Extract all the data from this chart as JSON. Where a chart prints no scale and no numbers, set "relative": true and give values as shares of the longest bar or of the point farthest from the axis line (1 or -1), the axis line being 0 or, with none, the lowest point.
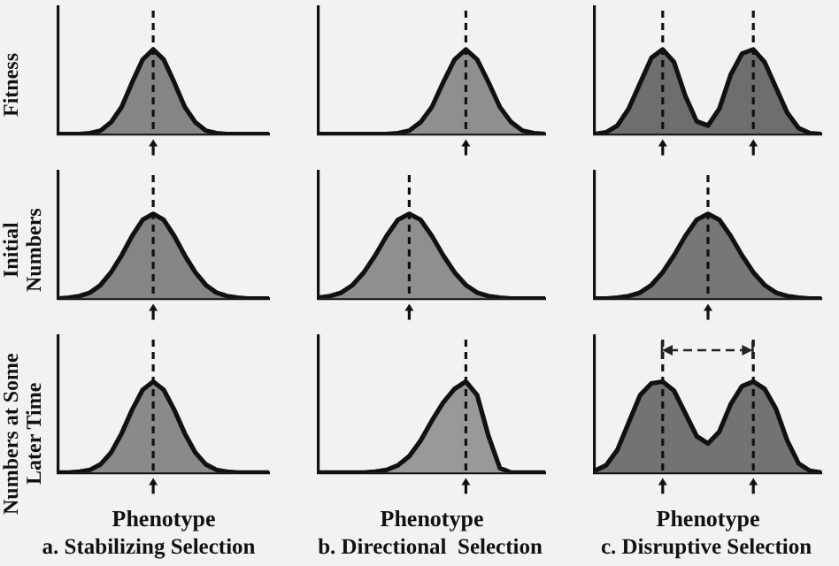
{
  "chart_data": [
    {
      "type": "area",
      "relative": true,
      "ylabel": "Fitness",
      "categories": [
        null,
        null,
        null,
        null,
        null,
        null,
        null,
        null,
        null,
        null,
        null,
        null,
        null,
        null,
        null,
        null,
        null,
        null,
        null,
        null,
        null
      ],
      "color": "#858585",
      "values": [
        0,
        0,
        0,
        0.01,
        0.04,
        0.14,
        0.32,
        0.61,
        0.88,
        1,
        0.88,
        0.61,
        0.32,
        0.14,
        0.04,
        0.01,
        0,
        0,
        0,
        0,
        0
      ]
    },
    {
      "type": "area",
      "relative": true,
      "categories": [
        null,
        null,
        null,
        null,
        null,
        null,
        null,
        null,
        null,
        null,
        null,
        null,
        null,
        null,
        null,
        null,
        null,
        null,
        null,
        null,
        null
      ],
      "color": "#8f8f8f",
      "values": [
        0,
        0,
        0,
        0,
        0,
        0,
        0,
        0.01,
        0.04,
        0.14,
        0.32,
        0.61,
        0.88,
        1,
        0.88,
        0.61,
        0.32,
        0.14,
        0.04,
        0.01,
        0
      ]
    },
    {
      "type": "area",
      "relative": true,
      "categories": [
        null,
        null,
        null,
        null,
        null,
        null,
        null,
        null,
        null,
        null,
        null,
        null,
        null,
        null,
        null,
        null,
        null,
        null,
        null,
        null,
        null
      ],
      "color": "#6e6e6e",
      "values": [
        0,
        0.02,
        0.1,
        0.3,
        0.6,
        0.9,
        1,
        0.85,
        0.45,
        0.15,
        0.1,
        0.3,
        0.7,
        0.95,
        1,
        0.85,
        0.55,
        0.25,
        0.07,
        0.01,
        0
      ]
    },
    {
      "type": "area",
      "relative": true,
      "ylabel": "Initial Numbers",
      "categories": [
        null,
        null,
        null,
        null,
        null,
        null,
        null,
        null,
        null,
        null,
        null,
        null,
        null,
        null,
        null,
        null,
        null,
        null,
        null,
        null,
        null
      ],
      "color": "#858585",
      "values": [
        0,
        0.01,
        0.03,
        0.07,
        0.16,
        0.31,
        0.51,
        0.74,
        0.93,
        1,
        0.93,
        0.74,
        0.51,
        0.31,
        0.16,
        0.07,
        0.03,
        0.01,
        0,
        0,
        0
      ]
    },
    {
      "type": "area",
      "relative": true,
      "categories": [
        null,
        null,
        null,
        null,
        null,
        null,
        null,
        null,
        null,
        null,
        null,
        null,
        null,
        null,
        null,
        null,
        null,
        null,
        null,
        null,
        null
      ],
      "color": "#8f8f8f",
      "values": [
        0.01,
        0.03,
        0.07,
        0.16,
        0.31,
        0.51,
        0.74,
        0.93,
        1,
        0.93,
        0.74,
        0.51,
        0.31,
        0.16,
        0.07,
        0.03,
        0.01,
        0,
        0,
        0,
        0
      ]
    },
    {
      "type": "area",
      "relative": true,
      "categories": [
        null,
        null,
        null,
        null,
        null,
        null,
        null,
        null,
        null,
        null,
        null,
        null,
        null,
        null,
        null,
        null,
        null,
        null,
        null,
        null,
        null
      ],
      "color": "#777777",
      "values": [
        0,
        0,
        0.01,
        0.03,
        0.07,
        0.16,
        0.31,
        0.51,
        0.74,
        0.93,
        1,
        0.93,
        0.74,
        0.51,
        0.31,
        0.16,
        0.07,
        0.03,
        0.01,
        0,
        0
      ]
    },
    {
      "type": "area",
      "relative": true,
      "ylabel": "Numbers at Some Later Time",
      "xlabel": "Phenotype",
      "annotations": [
        "a. Stabilizing Selection"
      ],
      "categories": [
        null,
        null,
        null,
        null,
        null,
        null,
        null,
        null,
        null,
        null,
        null,
        null,
        null,
        null,
        null,
        null,
        null,
        null,
        null,
        null,
        null
      ],
      "color": "#8a8a8a",
      "values": [
        0,
        0,
        0.01,
        0.03,
        0.09,
        0.22,
        0.43,
        0.69,
        0.91,
        1,
        0.91,
        0.69,
        0.43,
        0.22,
        0.09,
        0.03,
        0.01,
        0,
        0,
        0,
        0
      ]
    },
    {
      "type": "area",
      "relative": true,
      "xlabel": "Phenotype",
      "annotations": [
        "b. Directional  Selection"
      ],
      "categories": [
        null,
        null,
        null,
        null,
        null,
        null,
        null,
        null,
        null,
        null,
        null,
        null,
        null,
        null,
        null,
        null,
        null,
        null,
        null,
        null,
        null
      ],
      "color": "#999999",
      "values": [
        0,
        0,
        0,
        0,
        0,
        0.01,
        0.03,
        0.08,
        0.18,
        0.35,
        0.57,
        0.77,
        0.92,
        1,
        0.85,
        0.4,
        0.05,
        0,
        0,
        0,
        0
      ]
    },
    {
      "type": "area",
      "relative": true,
      "xlabel": "Phenotype",
      "annotations": [
        "c. Disruptive Selection"
      ],
      "categories": [
        null,
        null,
        null,
        null,
        null,
        null,
        null,
        null,
        null,
        null,
        null,
        null,
        null,
        null,
        null,
        null,
        null,
        null,
        null,
        null,
        null
      ],
      "color": "#737373",
      "values": [
        0.02,
        0.08,
        0.25,
        0.55,
        0.85,
        0.98,
        1,
        0.9,
        0.65,
        0.4,
        0.32,
        0.45,
        0.75,
        0.95,
        1,
        0.92,
        0.7,
        0.35,
        0.1,
        0.02,
        0
      ]
    }
  ]
}
